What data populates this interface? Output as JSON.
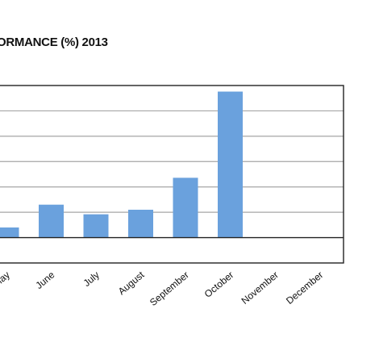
{
  "chart_data": {
    "type": "bar",
    "title": "ORMANCE (%) 2013",
    "categories": [
      "May",
      "June",
      "July",
      "August",
      "September",
      "October",
      "November",
      "December"
    ],
    "values": [
      2,
      6.5,
      4.6,
      5.5,
      11.8,
      28.8,
      0,
      0
    ],
    "ylim": [
      -5,
      30
    ],
    "grid": true,
    "bar_color": "#6aa1dd",
    "legend": "none"
  }
}
